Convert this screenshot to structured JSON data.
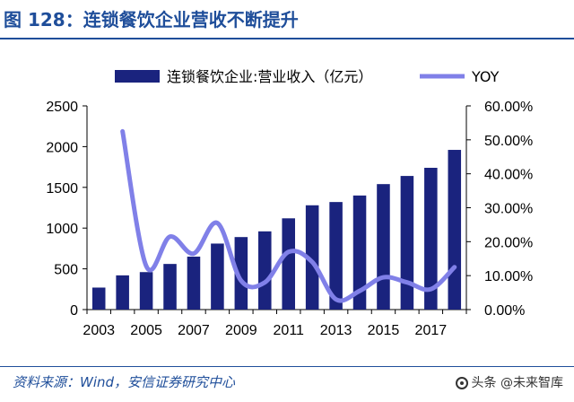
{
  "figure_title": "图 128：连锁餐饮企业营收不断提升",
  "source": "资料来源：Wind，安信证券研究中心",
  "watermark": "头条 @未来智库",
  "chart_data": {
    "type": "bar",
    "title": "",
    "categories": [
      "2003",
      "2004",
      "2005",
      "2006",
      "2007",
      "2008",
      "2009",
      "2010",
      "2011",
      "2012",
      "2013",
      "2014",
      "2015",
      "2016",
      "2017",
      "2018"
    ],
    "x_tick_labels": [
      "2003",
      "2005",
      "2007",
      "2009",
      "2011",
      "2013",
      "2015",
      "2017"
    ],
    "series": [
      {
        "name": "连锁餐饮企业:营业收入（亿元）",
        "type": "bar",
        "axis": "left",
        "color": "#1a237e",
        "values": [
          270,
          420,
          460,
          560,
          650,
          810,
          890,
          960,
          1120,
          1280,
          1320,
          1400,
          1540,
          1640,
          1740,
          1960
        ]
      },
      {
        "name": "YOY",
        "type": "line",
        "axis": "right",
        "color": "#8080e8",
        "values": [
          null,
          52.5,
          12.8,
          21.5,
          16.5,
          25.5,
          8.5,
          8.0,
          17.0,
          14.0,
          3.0,
          5.5,
          9.5,
          8.0,
          6.0,
          12.5
        ]
      }
    ],
    "y_left": {
      "min": 0,
      "max": 2500,
      "ticks": [
        "0",
        "500",
        "1000",
        "1500",
        "2000",
        "2500"
      ]
    },
    "y_right": {
      "min": 0,
      "max": 60,
      "ticks": [
        "0.00%",
        "10.00%",
        "20.00%",
        "30.00%",
        "40.00%",
        "50.00%",
        "60.00%"
      ]
    },
    "legend_position": "top",
    "grid": false
  }
}
